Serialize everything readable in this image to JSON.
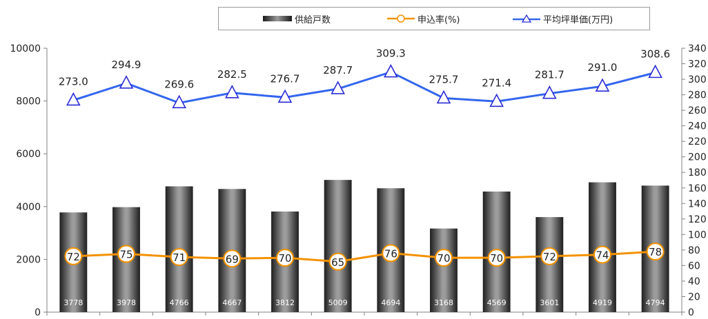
{
  "chart_data": {
    "type": "bar",
    "categories": [
      "",
      "",
      "",
      "",
      "",
      "",
      "",
      "",
      "",
      "",
      "",
      ""
    ],
    "series": [
      {
        "name": "供給戸数",
        "type": "bar",
        "axis": "left",
        "values": [
          3778,
          3978,
          4766,
          4667,
          3812,
          5009,
          4694,
          3168,
          4569,
          3601,
          4919,
          4794
        ],
        "color": "#4a4a4a"
      },
      {
        "name": "申込率(%)",
        "type": "line",
        "axis": "right",
        "values": [
          72,
          75,
          71,
          69,
          70,
          65,
          76,
          70,
          70,
          72,
          74,
          78
        ],
        "color": "#f39200"
      },
      {
        "name": "平均坪単価(万円)",
        "type": "line",
        "axis": "right",
        "values": [
          273.0,
          294.9,
          269.6,
          282.5,
          276.7,
          287.7,
          309.3,
          275.7,
          271.4,
          281.7,
          291.0,
          308.6
        ],
        "value_labels": [
          "273.0",
          "294.9",
          "269.6",
          "282.5",
          "276.7",
          "287.7",
          "309.3",
          "275.7",
          "271.4",
          "281.7",
          "291.0",
          "308.6"
        ],
        "color": "#3366ee"
      }
    ],
    "y_left": {
      "min": 0,
      "max": 10000,
      "ticks": [
        0,
        2000,
        4000,
        6000,
        8000,
        10000
      ]
    },
    "y_right": {
      "min": 0,
      "max": 340,
      "ticks": [
        0,
        20,
        40,
        60,
        80,
        100,
        120,
        140,
        160,
        180,
        200,
        220,
        240,
        260,
        280,
        300,
        320,
        340
      ]
    },
    "legend_position": "top",
    "grid": false
  }
}
